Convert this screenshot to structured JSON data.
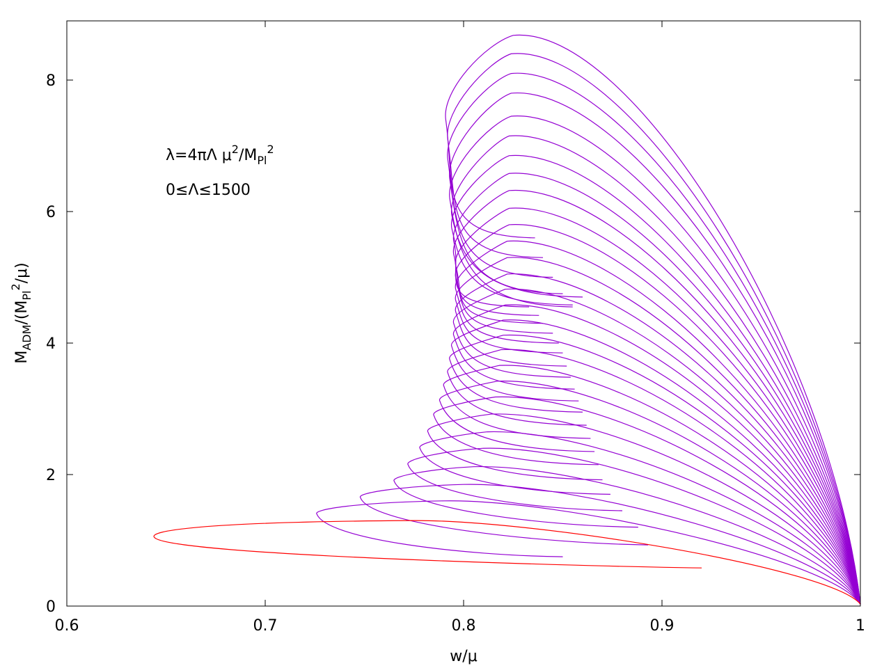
{
  "chart_data": {
    "type": "line",
    "xlabel": "w/μ",
    "ylabel_parts": {
      "main": "M",
      "sub1": "ADM",
      "mid1": "/(M",
      "sub2": "Pl",
      "sup": "2",
      "tail": "/μ)"
    },
    "xlim": [
      0.6,
      1.0
    ],
    "ylim": [
      0,
      8.9
    ],
    "x_ticks": [
      0.6,
      0.7,
      0.8,
      0.9,
      1.0
    ],
    "x_tick_labels": [
      "0.6",
      "0.7",
      "0.8",
      "0.9",
      "1"
    ],
    "y_ticks": [
      0,
      2,
      4,
      6,
      8
    ],
    "y_tick_labels": [
      "0",
      "2",
      "4",
      "6",
      "8"
    ],
    "annotations": {
      "line1_parts": {
        "a": "λ=4πΛ μ",
        "sup1": "2",
        "b": "/M",
        "sub": "Pl",
        "sup2": "2"
      },
      "line2": "0≤Λ≤1500"
    },
    "legend": "none",
    "grid": false,
    "colors": {
      "first_curve": "#ff0000",
      "other_curves": "#9400d3"
    },
    "curve_family": {
      "count": 29,
      "first_curve_color": "red",
      "series_note_hidden": true
    },
    "series": [
      {
        "peak_x": 0.773,
        "peak_y": 1.3,
        "left_x": 0.644,
        "left_y": 1.05,
        "end_x": 0.92,
        "end_y": 0.58
      },
      {
        "peak_x": 0.79,
        "peak_y": 1.6,
        "left_x": 0.726,
        "left_y": 1.4,
        "end_x": 0.85,
        "end_y": 0.75
      },
      {
        "peak_x": 0.8,
        "peak_y": 1.85,
        "left_x": 0.748,
        "left_y": 1.65,
        "end_x": 0.893,
        "end_y": 0.93
      },
      {
        "peak_x": 0.805,
        "peak_y": 2.12,
        "left_x": 0.765,
        "left_y": 1.9,
        "end_x": 0.888,
        "end_y": 1.2
      },
      {
        "peak_x": 0.81,
        "peak_y": 2.4,
        "left_x": 0.772,
        "left_y": 2.15,
        "end_x": 0.88,
        "end_y": 1.45
      },
      {
        "peak_x": 0.812,
        "peak_y": 2.65,
        "left_x": 0.778,
        "left_y": 2.4,
        "end_x": 0.874,
        "end_y": 1.7
      },
      {
        "peak_x": 0.814,
        "peak_y": 2.92,
        "left_x": 0.782,
        "left_y": 2.65,
        "end_x": 0.87,
        "end_y": 1.92
      },
      {
        "peak_x": 0.816,
        "peak_y": 3.18,
        "left_x": 0.785,
        "left_y": 2.9,
        "end_x": 0.868,
        "end_y": 2.15
      },
      {
        "peak_x": 0.817,
        "peak_y": 3.42,
        "left_x": 0.788,
        "left_y": 3.12,
        "end_x": 0.866,
        "end_y": 2.35
      },
      {
        "peak_x": 0.818,
        "peak_y": 3.66,
        "left_x": 0.79,
        "left_y": 3.35,
        "end_x": 0.864,
        "end_y": 2.55
      },
      {
        "peak_x": 0.819,
        "peak_y": 3.9,
        "left_x": 0.792,
        "left_y": 3.55,
        "end_x": 0.862,
        "end_y": 2.75
      },
      {
        "peak_x": 0.82,
        "peak_y": 4.12,
        "left_x": 0.793,
        "left_y": 3.75,
        "end_x": 0.86,
        "end_y": 2.95
      },
      {
        "peak_x": 0.82,
        "peak_y": 4.35,
        "left_x": 0.794,
        "left_y": 3.95,
        "end_x": 0.858,
        "end_y": 3.12
      },
      {
        "peak_x": 0.821,
        "peak_y": 4.58,
        "left_x": 0.795,
        "left_y": 4.12,
        "end_x": 0.856,
        "end_y": 3.3
      },
      {
        "peak_x": 0.821,
        "peak_y": 4.82,
        "left_x": 0.795,
        "left_y": 4.3,
        "end_x": 0.854,
        "end_y": 3.48
      },
      {
        "peak_x": 0.822,
        "peak_y": 5.05,
        "left_x": 0.796,
        "left_y": 4.48,
        "end_x": 0.852,
        "end_y": 3.65
      },
      {
        "peak_x": 0.822,
        "peak_y": 5.3,
        "left_x": 0.796,
        "left_y": 4.65,
        "end_x": 0.85,
        "end_y": 3.85
      },
      {
        "peak_x": 0.822,
        "peak_y": 5.55,
        "left_x": 0.796,
        "left_y": 4.82,
        "end_x": 0.848,
        "end_y": 4.0
      },
      {
        "peak_x": 0.823,
        "peak_y": 5.8,
        "left_x": 0.796,
        "left_y": 5.0,
        "end_x": 0.845,
        "end_y": 4.15
      },
      {
        "peak_x": 0.823,
        "peak_y": 6.05,
        "left_x": 0.796,
        "left_y": 5.18,
        "end_x": 0.84,
        "end_y": 4.3
      },
      {
        "peak_x": 0.823,
        "peak_y": 6.32,
        "left_x": 0.795,
        "left_y": 5.35,
        "end_x": 0.838,
        "end_y": 4.42
      },
      {
        "peak_x": 0.823,
        "peak_y": 6.58,
        "left_x": 0.795,
        "left_y": 5.55,
        "end_x": 0.833,
        "end_y": 4.55
      },
      {
        "peak_x": 0.823,
        "peak_y": 6.85,
        "left_x": 0.794,
        "left_y": 5.75,
        "end_x": 0.855,
        "end_y": 4.58
      },
      {
        "peak_x": 0.823,
        "peak_y": 7.15,
        "left_x": 0.794,
        "left_y": 5.95,
        "end_x": 0.86,
        "end_y": 4.7
      },
      {
        "peak_x": 0.824,
        "peak_y": 7.45,
        "left_x": 0.793,
        "left_y": 6.2,
        "end_x": 0.855,
        "end_y": 4.55
      },
      {
        "peak_x": 0.824,
        "peak_y": 7.8,
        "left_x": 0.793,
        "left_y": 6.5,
        "end_x": 0.85,
        "end_y": 4.75
      },
      {
        "peak_x": 0.824,
        "peak_y": 8.1,
        "left_x": 0.792,
        "left_y": 6.8,
        "end_x": 0.845,
        "end_y": 5.0
      },
      {
        "peak_x": 0.824,
        "peak_y": 8.4,
        "left_x": 0.792,
        "left_y": 7.1,
        "end_x": 0.84,
        "end_y": 5.3
      },
      {
        "peak_x": 0.825,
        "peak_y": 8.68,
        "left_x": 0.791,
        "left_y": 7.4,
        "end_x": 0.836,
        "end_y": 5.6
      }
    ]
  }
}
